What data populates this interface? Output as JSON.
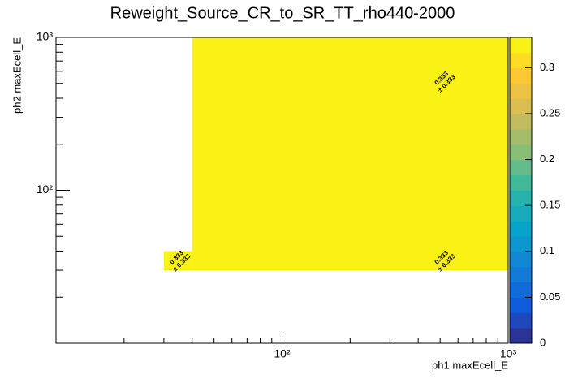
{
  "chart_data": {
    "type": "heatmap",
    "title": "Reweight_Source_CR_to_SR_TT_rho440-2000",
    "x_label": "ph1 maxEcell_E",
    "y_label": "ph2 maxEcell_E",
    "x_edges": [
      30,
      40,
      1000
    ],
    "y_edges": [
      30,
      40,
      1000
    ],
    "values": [
      [
        0.333,
        0.333
      ],
      [
        null,
        0.333
      ]
    ],
    "errors": [
      [
        0.333,
        0.333
      ],
      [
        null,
        0.333
      ]
    ],
    "error_labels": [
      [
        "± 0.333",
        "± 0.333"
      ],
      [
        null,
        "± 0.333"
      ]
    ],
    "xlim": [
      10,
      1000
    ],
    "ylim": [
      10,
      1000
    ],
    "log_x": true,
    "log_y": true,
    "xticks": [
      {
        "value": 100,
        "label": "10²"
      },
      {
        "value": 1000,
        "label": "10³"
      }
    ],
    "yticks": [
      {
        "value": 100,
        "label": "10²"
      },
      {
        "value": 1000,
        "label": "10³"
      }
    ],
    "xminorticks": [
      20,
      30,
      40,
      50,
      60,
      70,
      80,
      90,
      200,
      300,
      400,
      500,
      600,
      700,
      800,
      900
    ],
    "yminorticks": [
      20,
      30,
      40,
      50,
      60,
      70,
      80,
      90,
      200,
      300,
      400,
      500,
      600,
      700,
      800,
      900
    ],
    "zlim": [
      0,
      0.333
    ],
    "zticks": [
      0,
      0.05,
      0.1,
      0.15,
      0.2,
      0.25,
      0.3
    ],
    "palette": [
      "#352a87",
      "#0f5cdd",
      "#1481d6",
      "#06a4ca",
      "#2eb7a4",
      "#87bf77",
      "#d1bb59",
      "#fec832",
      "#f9fb0e"
    ]
  }
}
